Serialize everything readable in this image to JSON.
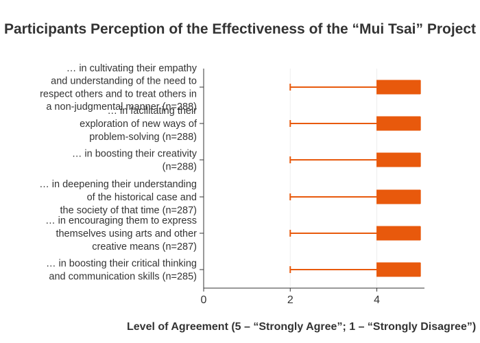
{
  "chart_data": {
    "type": "box",
    "orientation": "horizontal",
    "title": "Participants Perception of the Effectiveness of the “Mui Tsai” Project",
    "xlabel": "Level of Agreement (5 – “Strongly Agree”; 1 – “Strongly Disagree”)",
    "ylabel": "",
    "xlim": [
      0,
      5.1
    ],
    "xticks": [
      0,
      2,
      4
    ],
    "grid": true,
    "legend": "none",
    "color": "#e8590c",
    "categories": [
      {
        "label_lines": [
          "… in cultivating their empathy",
          "and understanding of the need to",
          "respect others and to treat others in",
          "a non-judgmental manner (n=288)"
        ],
        "n": 288,
        "min": 2,
        "q1": 4,
        "median": 5,
        "q3": 5,
        "max": 5
      },
      {
        "label_lines": [
          "… in facilitating their",
          "exploration of new ways of",
          "problem-solving (n=288)"
        ],
        "n": 288,
        "min": 2,
        "q1": 4,
        "median": 5,
        "q3": 5,
        "max": 5
      },
      {
        "label_lines": [
          "… in boosting their creativity",
          "(n=288)"
        ],
        "n": 288,
        "min": 2,
        "q1": 4,
        "median": 5,
        "q3": 5,
        "max": 5
      },
      {
        "label_lines": [
          "… in deepening their understanding",
          "of the historical case and",
          "the society of that time (n=287)"
        ],
        "n": 287,
        "min": 2,
        "q1": 4,
        "median": 5,
        "q3": 5,
        "max": 5
      },
      {
        "label_lines": [
          "… in encouraging them to express",
          "themselves using arts and other",
          "creative means (n=287)"
        ],
        "n": 287,
        "min": 2,
        "q1": 4,
        "median": 5,
        "q3": 5,
        "max": 5
      },
      {
        "label_lines": [
          "… in boosting their critical thinking",
          "and communication skills (n=285)"
        ],
        "n": 285,
        "min": 2,
        "q1": 4,
        "median": 5,
        "q3": 5,
        "max": 5
      }
    ]
  }
}
